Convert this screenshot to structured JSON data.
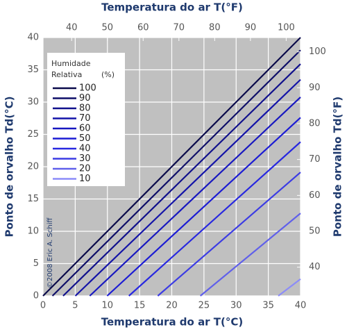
{
  "chart_data": {
    "type": "line",
    "xlabel": "Temperatura do ar T(°C)",
    "x2label": "Temperatura do ar T(°F)",
    "ylabel": "Ponto de orvalho Td(°C)",
    "y2label": "Ponto de orvalho Td(°F)",
    "xlim": [
      0,
      40
    ],
    "xticks": [
      0,
      5,
      10,
      15,
      20,
      25,
      30,
      35,
      40
    ],
    "ylim": [
      0,
      40
    ],
    "yticks": [
      0,
      5,
      10,
      15,
      20,
      25,
      30,
      35,
      40
    ],
    "x2lim": [
      32,
      104
    ],
    "x2ticks": [
      40,
      50,
      60,
      70,
      80,
      90,
      100
    ],
    "y2lim": [
      32,
      104
    ],
    "y2ticks": [
      40,
      50,
      60,
      70,
      80,
      90,
      100
    ],
    "grid": true,
    "legend_title": [
      "Humidade",
      "Relativa",
      "(%)"
    ],
    "legend": "upper left",
    "annotation": "©2008 Eric A. Schiff",
    "series": [
      {
        "name": "100",
        "color": "#0a0a4a",
        "x": [
          0,
          40
        ],
        "values": [
          0,
          40
        ]
      },
      {
        "name": "90",
        "color": "#0e0e68",
        "x": [
          1.46,
          40
        ],
        "values": [
          0,
          38.04
        ]
      },
      {
        "name": "80",
        "color": "#10108c",
        "x": [
          3.12,
          40
        ],
        "values": [
          0,
          35.89
        ]
      },
      {
        "name": "70",
        "color": "#1414a8",
        "x": [
          5.02,
          40
        ],
        "values": [
          0,
          33.48
        ]
      },
      {
        "name": "60",
        "color": "#1818c0",
        "x": [
          7.26,
          40
        ],
        "values": [
          0,
          30.76
        ]
      },
      {
        "name": "50",
        "color": "#1c1cd4",
        "x": [
          9.96,
          40
        ],
        "values": [
          0,
          27.6
        ]
      },
      {
        "name": "40",
        "color": "#2828e0",
        "x": [
          13.34,
          40
        ],
        "values": [
          0,
          23.83
        ]
      },
      {
        "name": "30",
        "color": "#3c3ce4",
        "x": [
          17.83,
          40
        ],
        "values": [
          0,
          19.13
        ]
      },
      {
        "name": "20",
        "color": "#6060ea",
        "x": [
          24.44,
          40
        ],
        "values": [
          0,
          12.78
        ]
      },
      {
        "name": "10",
        "color": "#8c8cf8",
        "x": [
          36.55,
          40
        ],
        "values": [
          0,
          2.61
        ]
      }
    ]
  }
}
